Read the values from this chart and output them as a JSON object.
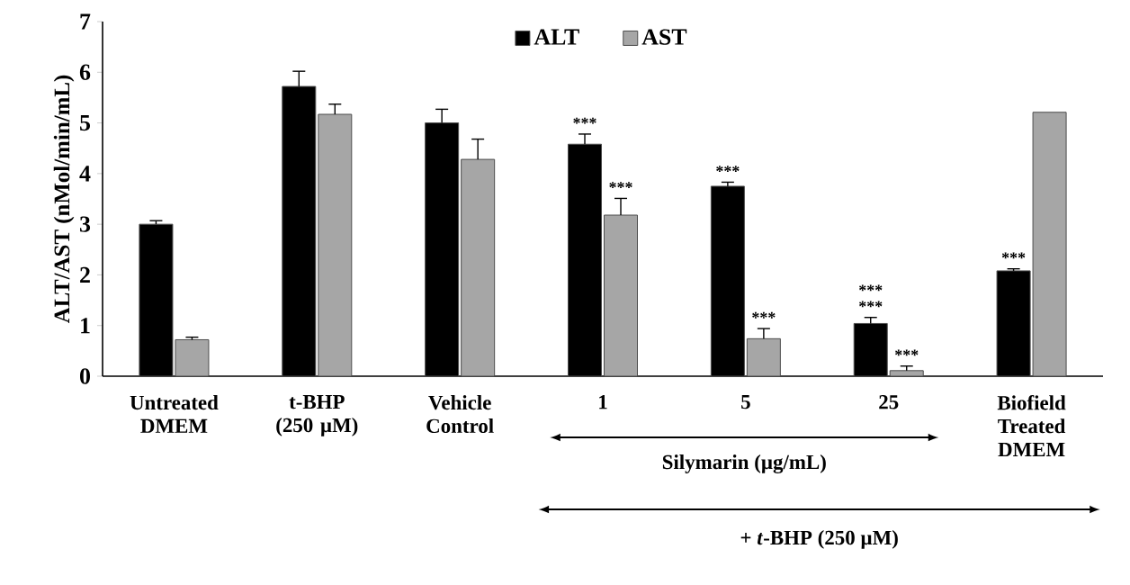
{
  "chart_data": {
    "type": "bar",
    "ylabel": "ALT/AST (nMol/min/mL)",
    "categories": [
      "Untreated DMEM",
      "t-BHP (250 µM)",
      "Vehicle Control",
      "1",
      "5",
      "25",
      "Biofield Treated DMEM"
    ],
    "series": [
      {
        "name": "ALT",
        "color": "#000000",
        "values": [
          3.0,
          5.72,
          5.0,
          4.58,
          3.75,
          1.04,
          2.08
        ],
        "errors": [
          0.07,
          0.3,
          0.27,
          0.2,
          0.08,
          0.12,
          0.04
        ],
        "value_labels": [
          null,
          null,
          null,
          "***",
          "***",
          "***",
          "***"
        ]
      },
      {
        "name": "AST",
        "color": "#a6a6a6",
        "values": [
          0.72,
          5.17,
          4.28,
          3.18,
          0.74,
          0.11,
          5.21
        ],
        "errors": [
          0.05,
          0.2,
          0.4,
          0.33,
          0.2,
          0.09,
          null
        ],
        "value_labels": [
          null,
          null,
          null,
          "***",
          "***",
          "***",
          null
        ]
      }
    ],
    "ylim": [
      0,
      7
    ],
    "yticks": [
      0,
      1,
      2,
      3,
      4,
      5,
      6,
      7
    ],
    "legend": "top",
    "annotations": [
      "Silymarin  (µg/mL)",
      "+ *t*-BHP (250 µM)",
      {
        "text": "***",
        "x": "25",
        "y": 1.16
      }
    ]
  }
}
